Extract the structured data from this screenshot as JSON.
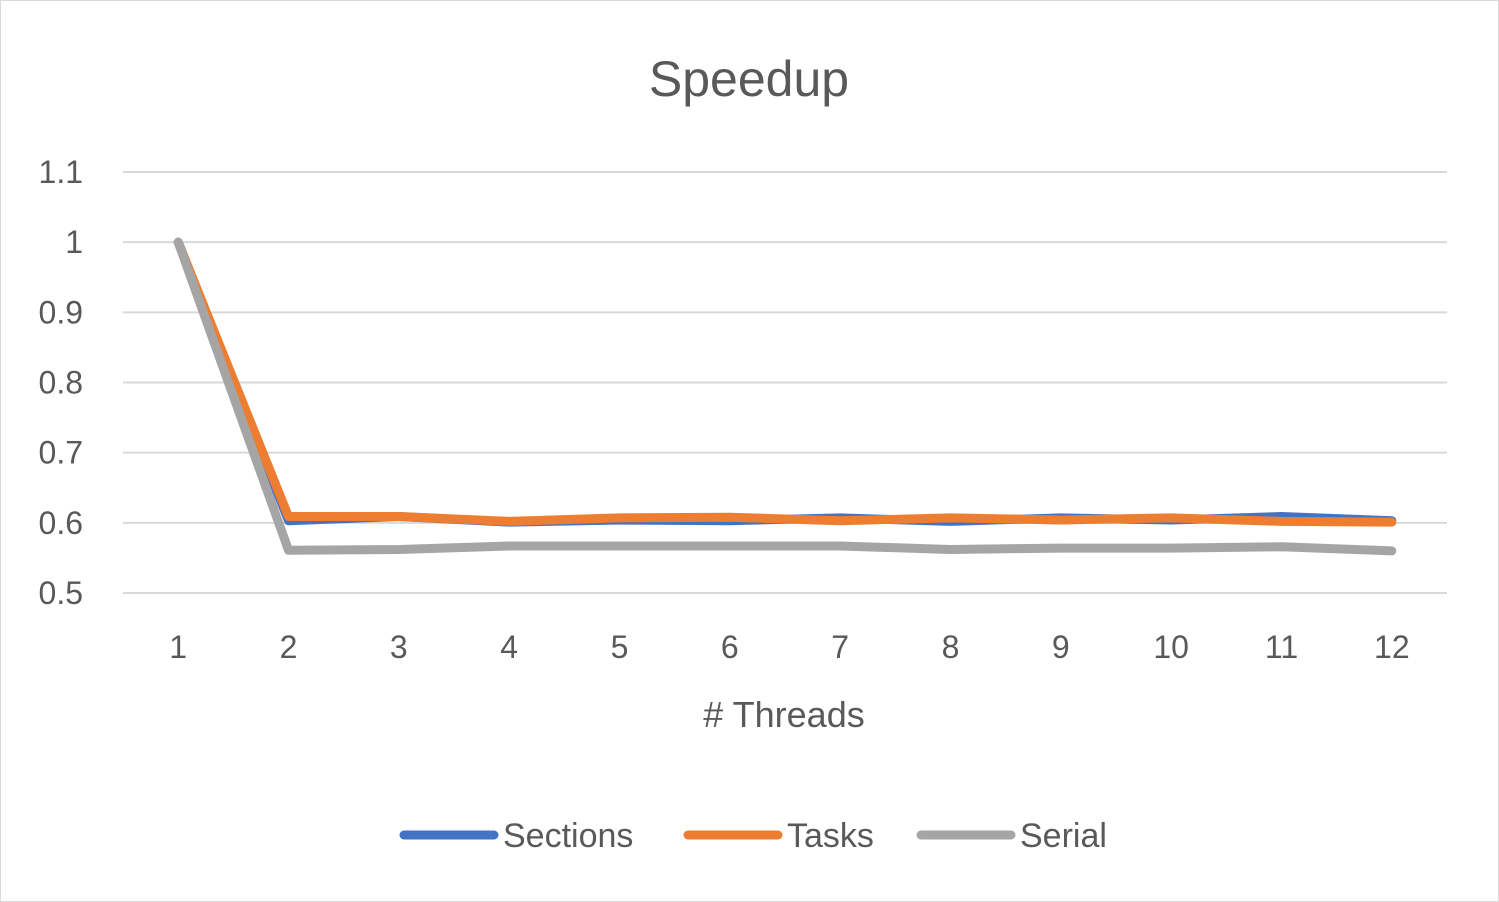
{
  "chart_data": {
    "type": "line",
    "title": "Speedup",
    "xlabel": "# Threads",
    "ylabel": "",
    "categories": [
      "1",
      "2",
      "3",
      "4",
      "5",
      "6",
      "7",
      "8",
      "9",
      "10",
      "11",
      "12"
    ],
    "ylim": [
      0.5,
      1.1
    ],
    "yticks": [
      "0.5",
      "0.6",
      "0.7",
      "0.8",
      "0.9",
      "1",
      "1.1"
    ],
    "grid": true,
    "legend": "bottom",
    "series": [
      {
        "name": "Sections",
        "color": "#4472c4",
        "values": [
          1.0,
          0.603,
          0.609,
          0.601,
          0.604,
          0.603,
          0.607,
          0.602,
          0.607,
          0.604,
          0.609,
          0.603
        ]
      },
      {
        "name": "Tasks",
        "color": "#ed7d31",
        "values": [
          1.0,
          0.609,
          0.609,
          0.602,
          0.607,
          0.608,
          0.603,
          0.607,
          0.604,
          0.607,
          0.602,
          0.601
        ]
      },
      {
        "name": "Serial",
        "color": "#a5a5a5",
        "values": [
          1.0,
          0.561,
          0.562,
          0.567,
          0.567,
          0.567,
          0.567,
          0.562,
          0.564,
          0.564,
          0.566,
          0.56
        ]
      }
    ]
  }
}
